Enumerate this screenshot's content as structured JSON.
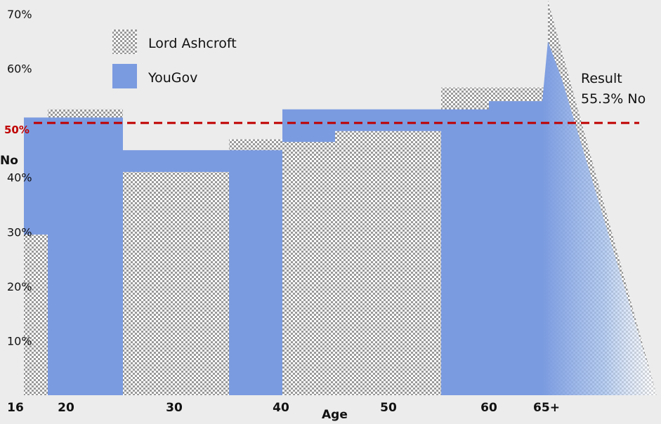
{
  "chart_data": {
    "type": "bar",
    "xlabel": "Age",
    "ylabel": "No",
    "ylim": [
      0,
      70
    ],
    "y_ticks": [
      "10%",
      "20%",
      "30%",
      "40%",
      "50%",
      "60%",
      "70%"
    ],
    "x_ticks": [
      "16",
      "20",
      "30",
      "40",
      "50",
      "60",
      "65+"
    ],
    "legend": [
      "Lord Ashcroft",
      "YouGov"
    ],
    "legend_position": "top-left",
    "grid": false,
    "reference_line": {
      "value": 50,
      "label": "50%",
      "color": "#c00000",
      "style": "dashed"
    },
    "annotation": {
      "line1": "Result",
      "line2": "55.3% No",
      "value": 55.3
    },
    "series": [
      {
        "name": "Lord Ashcroft",
        "segments": [
          {
            "from": "16",
            "to": "17",
            "value": 29.5
          },
          {
            "from": "18",
            "to": "24",
            "value": 52.5
          },
          {
            "from": "25",
            "to": "34",
            "value": 41
          },
          {
            "from": "35",
            "to": "44",
            "value": 47
          },
          {
            "from": "45",
            "to": "54",
            "value": 48.5
          },
          {
            "from": "55",
            "to": "64",
            "value": 56.5
          },
          {
            "from": "65+",
            "to": "",
            "value": 72.5
          }
        ]
      },
      {
        "name": "YouGov",
        "segments": [
          {
            "from": "16",
            "to": "17",
            "value": 51
          },
          {
            "from": "18",
            "to": "24",
            "value": 51
          },
          {
            "from": "25",
            "to": "39",
            "value": 45
          },
          {
            "from": "40",
            "to": "59",
            "value": 52.5
          },
          {
            "from": "60",
            "to": "",
            "value": 54
          },
          {
            "from": "65+",
            "to": "",
            "value": 65
          }
        ]
      }
    ]
  },
  "colors": {
    "background": "#ececec",
    "yougov": "#7b9be0",
    "checker_light": "#ffffff",
    "checker_dark": "#9a9a9a",
    "reference_line": "#c00000"
  }
}
